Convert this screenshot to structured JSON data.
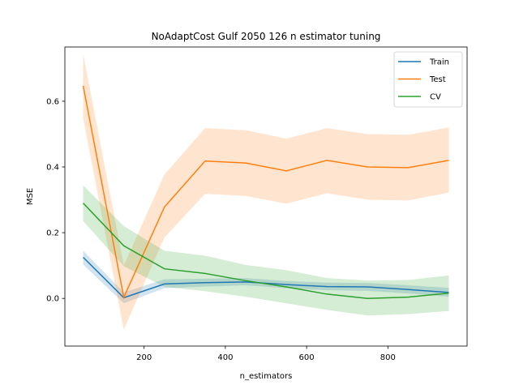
{
  "chart_data": {
    "type": "line",
    "title": "NoAdaptCost Gulf 2050 126 n estimator tuning",
    "xlabel": "n_estimators",
    "ylabel": "MSE",
    "xlim": [
      5,
      995
    ],
    "ylim": [
      -0.145,
      0.765
    ],
    "x": [
      50,
      150,
      250,
      350,
      450,
      550,
      650,
      750,
      850,
      950
    ],
    "x_ticks": [
      200,
      400,
      600,
      800
    ],
    "x_tick_labels": [
      "200",
      "400",
      "600",
      "800"
    ],
    "y_ticks": [
      0.0,
      0.2,
      0.4,
      0.6
    ],
    "y_tick_labels": [
      "0.0",
      "0.2",
      "0.4",
      "0.6"
    ],
    "grid": false,
    "legend_position": "top-right",
    "series": [
      {
        "name": "Train",
        "color": "#1f77b4",
        "values": [
          0.125,
          0.002,
          0.044,
          0.048,
          0.05,
          0.042,
          0.036,
          0.035,
          0.027,
          0.018
        ],
        "band_lower": [
          0.103,
          -0.015,
          0.031,
          0.036,
          0.04,
          0.031,
          0.025,
          0.023,
          0.015,
          0.005
        ],
        "band_upper": [
          0.145,
          0.018,
          0.058,
          0.06,
          0.062,
          0.053,
          0.048,
          0.047,
          0.04,
          0.032
        ]
      },
      {
        "name": "Test",
        "color": "#ff7f0e",
        "values": [
          0.647,
          0.003,
          0.278,
          0.418,
          0.412,
          0.388,
          0.42,
          0.4,
          0.398,
          0.42
        ],
        "band_lower": [
          0.548,
          -0.095,
          0.185,
          0.318,
          0.312,
          0.288,
          0.32,
          0.3,
          0.298,
          0.322
        ],
        "band_upper": [
          0.745,
          0.1,
          0.377,
          0.518,
          0.512,
          0.486,
          0.518,
          0.5,
          0.498,
          0.52
        ]
      },
      {
        "name": "CV",
        "color": "#2ca02c",
        "values": [
          0.29,
          0.16,
          0.09,
          0.076,
          0.054,
          0.035,
          0.013,
          0.0,
          0.004,
          0.016
        ],
        "band_lower": [
          0.235,
          0.098,
          0.035,
          0.022,
          0.005,
          -0.015,
          -0.035,
          -0.052,
          -0.048,
          -0.038
        ],
        "band_upper": [
          0.344,
          0.22,
          0.145,
          0.13,
          0.102,
          0.086,
          0.062,
          0.054,
          0.056,
          0.07
        ]
      }
    ]
  }
}
